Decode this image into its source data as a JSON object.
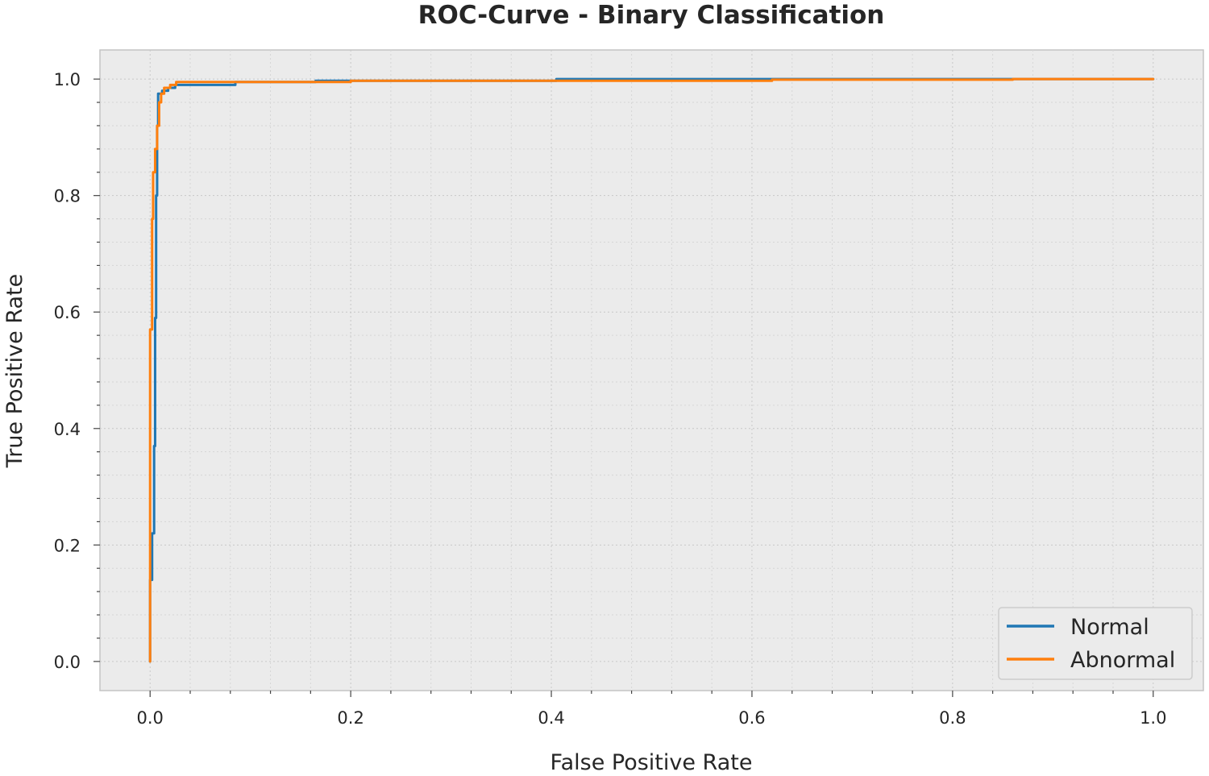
{
  "chart_data": {
    "type": "line",
    "title": "ROC-Curve - Binary Classification",
    "xlabel": "False Positive Rate",
    "ylabel": "True Positive Rate",
    "xlim": [
      -0.05,
      1.05
    ],
    "ylim": [
      -0.05,
      1.05
    ],
    "xticks": [
      "0.0",
      "0.2",
      "0.4",
      "0.6",
      "0.8",
      "1.0"
    ],
    "yticks": [
      "0.0",
      "0.2",
      "0.4",
      "0.6",
      "0.8",
      "1.0"
    ],
    "grid": true,
    "legend_position": "lower-right",
    "series": [
      {
        "name": "Normal",
        "color": "#1f77b4",
        "x": [
          0.0,
          0.0,
          0.002,
          0.002,
          0.004,
          0.004,
          0.005,
          0.005,
          0.006,
          0.006,
          0.007,
          0.007,
          0.008,
          0.008,
          0.012,
          0.012,
          0.018,
          0.018,
          0.025,
          0.025,
          0.085,
          0.085,
          0.165,
          0.165,
          0.405,
          0.405,
          0.72,
          0.72,
          1.0
        ],
        "y": [
          0.0,
          0.14,
          0.14,
          0.22,
          0.22,
          0.37,
          0.37,
          0.59,
          0.59,
          0.8,
          0.8,
          0.92,
          0.92,
          0.975,
          0.975,
          0.98,
          0.98,
          0.985,
          0.985,
          0.99,
          0.99,
          0.995,
          0.995,
          0.997,
          0.997,
          1.0,
          1.0,
          1.0,
          1.0
        ]
      },
      {
        "name": "Abnormal",
        "color": "#ff7f0e",
        "x": [
          0.0,
          0.0,
          0.002,
          0.002,
          0.003,
          0.003,
          0.005,
          0.005,
          0.007,
          0.007,
          0.009,
          0.009,
          0.011,
          0.011,
          0.014,
          0.014,
          0.02,
          0.02,
          0.026,
          0.026,
          0.2,
          0.2,
          0.62,
          0.62,
          0.86,
          0.86,
          1.0
        ],
        "y": [
          0.0,
          0.57,
          0.57,
          0.76,
          0.76,
          0.84,
          0.84,
          0.88,
          0.88,
          0.92,
          0.92,
          0.96,
          0.96,
          0.975,
          0.975,
          0.985,
          0.985,
          0.99,
          0.99,
          0.995,
          0.995,
          0.997,
          0.997,
          0.999,
          0.999,
          1.0,
          1.0
        ]
      }
    ]
  }
}
